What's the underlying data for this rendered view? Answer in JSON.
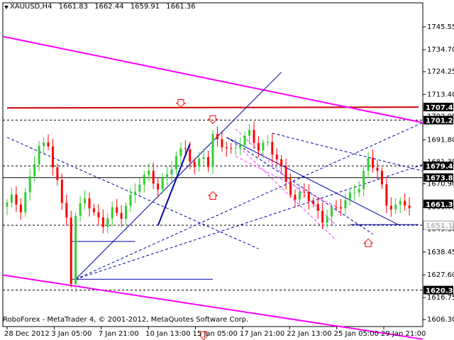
{
  "header": {
    "symbol_timeframe": "XAUUSD,H4",
    "open": "1661.83",
    "high": "1662.44",
    "low": "1659.91",
    "close": "1661.36"
  },
  "footer": {
    "copyright": "RoboForex - MetaTrader 4, © 2001-2012, MetaQuotes Software Corp."
  },
  "colors": {
    "bull": "#32cd32",
    "bear": "#ff0000",
    "trendline": "#ff00ff",
    "resistance": "#cc0000",
    "channel": "#0000aa",
    "fan": "#ff33ff",
    "arrow": "#6666ff",
    "label_bg": "#000000",
    "label_fg": "#ffffff"
  },
  "chart_data": {
    "type": "candlestick",
    "symbol": "XAUUSD",
    "timeframe": "H4",
    "ylim": [
      1603.0,
      1757.0
    ],
    "y_ticks": [
      "1745.55",
      "1734.70",
      "1724.25",
      "1713.40",
      "1702.95",
      "1691.80",
      "1681.35",
      "1670.90",
      "1659.75",
      "1649.30",
      "1638.45",
      "1627.60",
      "1616.75",
      "1606.30"
    ],
    "x_ticks": [
      "28 Dec 2012",
      "3 Jan 05:00",
      "7 Jan 21:00",
      "10 Jan 13:00",
      "15 Jan 05:00",
      "17 Jan 21:00",
      "22 Jan 13:00",
      "25 Jan 05:00",
      "29 Jan 21:00"
    ],
    "x_ticks_bar_index": [
      0,
      10,
      20,
      30,
      40,
      50,
      60,
      70,
      80
    ],
    "n_bars": 91,
    "price_labels": [
      {
        "text": "1707.42",
        "value": 1707.42
      },
      {
        "text": "1701.20",
        "value": 1701.2
      },
      {
        "text": "1679.42",
        "value": 1679.42
      },
      {
        "text": "1673.86",
        "value": 1673.86
      },
      {
        "text": "1661.36",
        "value": 1661.36
      },
      {
        "text": "1651.19",
        "value": 1651.19
      },
      {
        "text": "1620.35",
        "value": 1620.35
      }
    ],
    "horizontal_levels": [
      1701.2,
      1679.42,
      1673.86,
      1651.19,
      1620.35
    ],
    "close_path": [
      [
        0,
        1660
      ],
      [
        2,
        1664
      ],
      [
        4,
        1659
      ],
      [
        6,
        1673
      ],
      [
        8,
        1690
      ],
      [
        10,
        1688
      ],
      [
        12,
        1673
      ],
      [
        13,
        1660
      ],
      [
        14,
        1655
      ],
      [
        15,
        1625
      ],
      [
        16,
        1655
      ],
      [
        18,
        1665
      ],
      [
        20,
        1656
      ],
      [
        22,
        1652
      ],
      [
        24,
        1658
      ],
      [
        26,
        1656
      ],
      [
        28,
        1664
      ],
      [
        30,
        1672
      ],
      [
        32,
        1676
      ],
      [
        34,
        1669
      ],
      [
        36,
        1675
      ],
      [
        38,
        1684
      ],
      [
        40,
        1688
      ],
      [
        42,
        1678
      ],
      [
        44,
        1685
      ],
      [
        45,
        1680
      ],
      [
        46,
        1693
      ],
      [
        48,
        1690
      ],
      [
        50,
        1686
      ],
      [
        52,
        1691
      ],
      [
        54,
        1695
      ],
      [
        56,
        1688
      ],
      [
        58,
        1690
      ],
      [
        60,
        1683
      ],
      [
        62,
        1672
      ],
      [
        64,
        1663
      ],
      [
        66,
        1668
      ],
      [
        68,
        1660
      ],
      [
        70,
        1654
      ],
      [
        72,
        1658
      ],
      [
        74,
        1661
      ],
      [
        76,
        1665
      ],
      [
        78,
        1670
      ],
      [
        80,
        1682
      ],
      [
        82,
        1678
      ],
      [
        84,
        1660
      ],
      [
        86,
        1661
      ],
      [
        88,
        1661
      ]
    ],
    "resistance_line": [
      [
        0,
        1707.0
      ],
      [
        90,
        1707.4
      ]
    ],
    "upper_trendline": [
      [
        0,
        1741.0
      ],
      [
        90,
        1700.0
      ]
    ],
    "lower_trendline": [
      [
        0,
        1627.5
      ],
      [
        90,
        1597.0
      ]
    ],
    "support_lines": [
      [
        [
          14,
          1625.5
        ],
        [
          45,
          1625.5
        ]
      ],
      [
        [
          14,
          1643.5
        ],
        [
          28,
          1643.5
        ]
      ],
      [
        [
          75,
          1651.5
        ],
        [
          90,
          1651.5
        ]
      ]
    ],
    "arrows_down": [
      [
        45,
        1701.3
      ],
      [
        38,
        1709.0
      ],
      [
        43,
        1598.5
      ]
    ],
    "arrows_up": [
      [
        45,
        1665.5
      ],
      [
        79,
        1643.0
      ]
    ]
  }
}
